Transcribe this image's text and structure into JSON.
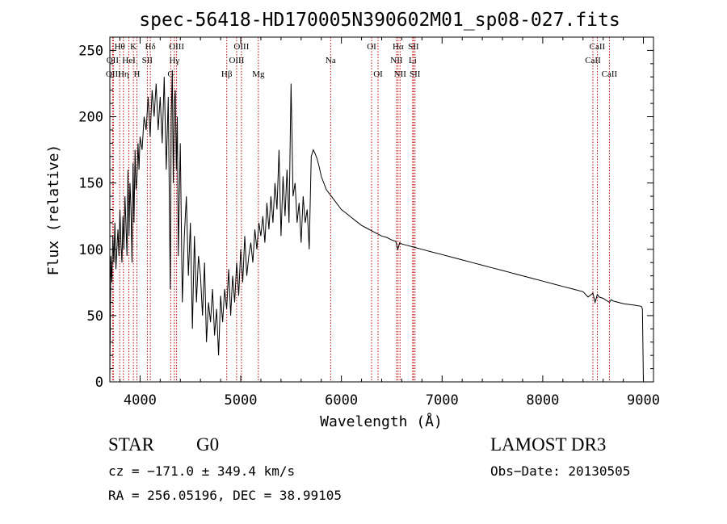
{
  "chart_data": {
    "type": "line",
    "title": "spec-56418-HD170005N390602M01_sp08-027.fits",
    "xlabel": "Wavelength (Å)",
    "ylabel": "Flux (relative)",
    "xlim": [
      3700,
      9100
    ],
    "ylim": [
      0,
      260
    ],
    "xticks": [
      4000,
      5000,
      6000,
      7000,
      8000,
      9000
    ],
    "yticks": [
      0,
      50,
      100,
      150,
      200,
      250
    ],
    "grid": false,
    "series": [
      {
        "name": "flux",
        "x": [
          3700,
          3710,
          3720,
          3730,
          3740,
          3750,
          3760,
          3770,
          3780,
          3790,
          3800,
          3810,
          3820,
          3830,
          3840,
          3850,
          3860,
          3870,
          3880,
          3890,
          3900,
          3910,
          3920,
          3930,
          3940,
          3950,
          3960,
          3970,
          3980,
          3990,
          4000,
          4020,
          4040,
          4060,
          4080,
          4100,
          4120,
          4140,
          4160,
          4180,
          4200,
          4220,
          4240,
          4260,
          4280,
          4300,
          4310,
          4320,
          4330,
          4340,
          4350,
          4360,
          4370,
          4380,
          4390,
          4400,
          4420,
          4440,
          4460,
          4480,
          4500,
          4520,
          4540,
          4560,
          4580,
          4600,
          4620,
          4640,
          4660,
          4680,
          4700,
          4720,
          4740,
          4760,
          4780,
          4800,
          4820,
          4840,
          4860,
          4880,
          4900,
          4920,
          4940,
          4960,
          4980,
          5000,
          5020,
          5040,
          5060,
          5080,
          5100,
          5120,
          5140,
          5160,
          5180,
          5200,
          5220,
          5240,
          5260,
          5280,
          5300,
          5320,
          5340,
          5360,
          5380,
          5400,
          5420,
          5440,
          5460,
          5480,
          5500,
          5520,
          5540,
          5560,
          5580,
          5600,
          5620,
          5640,
          5660,
          5680,
          5700,
          5720,
          5740,
          5760,
          5780,
          5800,
          5850,
          5900,
          5950,
          6000,
          6050,
          6100,
          6150,
          6200,
          6250,
          6300,
          6350,
          6400,
          6450,
          6500,
          6540,
          6560,
          6580,
          6600,
          6650,
          6700,
          6750,
          6800,
          6900,
          7000,
          7100,
          7200,
          7300,
          7400,
          7500,
          7600,
          7700,
          7800,
          7900,
          8000,
          8100,
          8200,
          8300,
          8400,
          8450,
          8498,
          8520,
          8542,
          8560,
          8600,
          8662,
          8680,
          8700,
          8800,
          8900,
          8980,
          8990,
          9000
        ],
        "y": [
          3,
          95,
          75,
          110,
          90,
          120,
          85,
          100,
          115,
          95,
          130,
          105,
          90,
          125,
          100,
          140,
          120,
          95,
          160,
          110,
          150,
          130,
          90,
          165,
          120,
          175,
          145,
          155,
          180,
          160,
          185,
          175,
          200,
          190,
          215,
          185,
          220,
          200,
          225,
          190,
          215,
          180,
          230,
          160,
          215,
          70,
          200,
          235,
          150,
          210,
          220,
          160,
          200,
          95,
          140,
          180,
          60,
          110,
          140,
          80,
          120,
          40,
          110,
          60,
          95,
          80,
          50,
          90,
          30,
          60,
          45,
          70,
          35,
          55,
          20,
          65,
          45,
          70,
          55,
          85,
          50,
          80,
          60,
          90,
          65,
          100,
          75,
          110,
          80,
          95,
          105,
          90,
          115,
          100,
          120,
          110,
          125,
          105,
          135,
          115,
          140,
          120,
          150,
          130,
          175,
          110,
          155,
          125,
          160,
          120,
          225,
          140,
          150,
          120,
          135,
          105,
          140,
          120,
          130,
          100,
          170,
          175,
          172,
          168,
          162,
          155,
          145,
          140,
          135,
          130,
          127,
          124,
          121,
          118,
          116,
          114,
          112,
          110,
          109,
          107,
          106,
          100,
          105,
          104,
          103,
          102,
          101,
          100,
          98,
          96,
          94,
          92,
          90,
          88,
          86,
          84,
          82,
          80,
          78,
          76,
          74,
          72,
          70,
          68,
          64,
          67,
          60,
          66,
          64,
          63,
          60,
          62,
          61,
          59,
          58,
          57,
          55,
          0
        ]
      }
    ],
    "lines": [
      {
        "name": "OII",
        "w": 3727,
        "row": 1
      },
      {
        "name": "OIII",
        "w": 3735,
        "row": 2
      },
      {
        "name": "Hθ",
        "w": 3798,
        "row": 0
      },
      {
        "name": "Hη",
        "w": 3835,
        "row": 2
      },
      {
        "name": "HeI",
        "w": 3889,
        "row": 1
      },
      {
        "name": "K",
        "w": 3934,
        "row": 0
      },
      {
        "name": "H",
        "w": 3969,
        "row": 2
      },
      {
        "name": "SII",
        "w": 4072,
        "row": 1
      },
      {
        "name": "Hδ",
        "w": 4102,
        "row": 0
      },
      {
        "name": "G",
        "w": 4305,
        "row": 2
      },
      {
        "name": "Hγ",
        "w": 4341,
        "row": 1
      },
      {
        "name": "OIII",
        "w": 4363,
        "row": 0
      },
      {
        "name": "Hβ",
        "w": 4861,
        "row": 2
      },
      {
        "name": "OIII",
        "w": 4959,
        "row": 1
      },
      {
        "name": "OIII",
        "w": 5007,
        "row": 0
      },
      {
        "name": "Mg",
        "w": 5175,
        "row": 2
      },
      {
        "name": "Na",
        "w": 5893,
        "row": 1
      },
      {
        "name": "OI",
        "w": 6300,
        "row": 0
      },
      {
        "name": "OI",
        "w": 6364,
        "row": 2
      },
      {
        "name": "NII",
        "w": 6548,
        "row": 1
      },
      {
        "name": "Hα",
        "w": 6563,
        "row": 0
      },
      {
        "name": "NII",
        "w": 6583,
        "row": 2
      },
      {
        "name": "Li",
        "w": 6708,
        "row": 1
      },
      {
        "name": "SII",
        "w": 6716,
        "row": 0
      },
      {
        "name": "SII",
        "w": 6731,
        "row": 2
      },
      {
        "name": "CaII",
        "w": 8498,
        "row": 1
      },
      {
        "name": "CaII",
        "w": 8542,
        "row": 0
      },
      {
        "name": "CaII",
        "w": 8662,
        "row": 2
      }
    ],
    "colors": {
      "spectrum": "#000000",
      "line_marker": "#c00000",
      "axes": "#000000"
    }
  },
  "info": {
    "object_class": "STAR",
    "subclass": "G0",
    "survey": "LAMOST DR3",
    "cz": "cz = −171.0 ± 349.4 km/s",
    "obs_date": "Obs−Date: 20130505",
    "radec": "RA = 256.05196, DEC =  38.99105"
  }
}
